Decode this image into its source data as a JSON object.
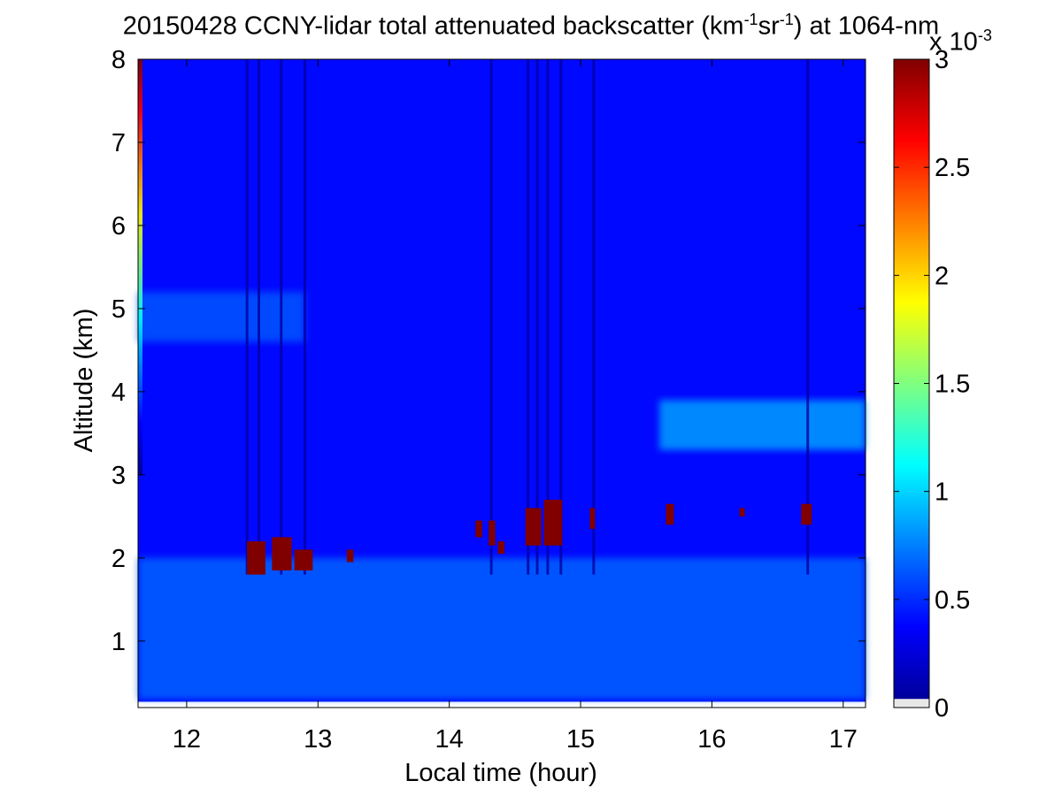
{
  "chart_data": {
    "type": "heatmap",
    "title": {
      "main": "20150428 CCNY-lidar total attenuated backscatter (km",
      "sup1": "-1",
      "mid": "sr",
      "sup2": "-1",
      "end": ") at 1064-nm"
    },
    "xlabel": "Local time (hour)",
    "ylabel": "Altitude (km)",
    "xlim": [
      11.63,
      17.17
    ],
    "ylim": [
      0.2,
      8
    ],
    "x_ticks": [
      12,
      13,
      14,
      15,
      16,
      17
    ],
    "y_ticks": [
      1,
      2,
      3,
      4,
      5,
      6,
      7,
      8
    ],
    "colorbar": {
      "range": [
        0,
        3
      ],
      "ticks": [
        "0",
        "0.5",
        "1",
        "1.5",
        "2",
        "2.5",
        "3"
      ],
      "tick_values": [
        0,
        0.5,
        1,
        1.5,
        2,
        2.5,
        3
      ],
      "multiplier_base": "x 10",
      "multiplier_exp": "-3",
      "colormap": "jet"
    },
    "background_value": 0.4,
    "layers": [
      {
        "feature": "surface-aerosol-layer",
        "altitude_km": [
          0.3,
          2.0
        ],
        "value": 0.7
      },
      {
        "feature": "upper-aerosol-band",
        "altitude_km": [
          3.3,
          3.9
        ],
        "time_hour": [
          15.6,
          17.17
        ],
        "value": 0.9
      },
      {
        "feature": "elevated-layer",
        "altitude_km": [
          4.6,
          5.2
        ],
        "time_hour": [
          11.63,
          12.9
        ],
        "value": 0.65
      }
    ],
    "clouds": [
      {
        "time_hour": [
          12.46,
          12.6
        ],
        "altitude_km": [
          1.8,
          2.2
        ],
        "value": 3
      },
      {
        "time_hour": [
          12.65,
          12.8
        ],
        "altitude_km": [
          1.85,
          2.25
        ],
        "value": 3
      },
      {
        "time_hour": [
          12.82,
          12.96
        ],
        "altitude_km": [
          1.85,
          2.1
        ],
        "value": 3
      },
      {
        "time_hour": [
          13.22,
          13.27
        ],
        "altitude_km": [
          1.95,
          2.1
        ],
        "value": 3
      },
      {
        "time_hour": [
          14.2,
          14.25
        ],
        "altitude_km": [
          2.25,
          2.45
        ],
        "value": 3
      },
      {
        "time_hour": [
          14.3,
          14.35
        ],
        "altitude_km": [
          2.15,
          2.45
        ],
        "value": 3
      },
      {
        "time_hour": [
          14.37,
          14.42
        ],
        "altitude_km": [
          2.05,
          2.2
        ],
        "value": 3
      },
      {
        "time_hour": [
          14.58,
          14.7
        ],
        "altitude_km": [
          2.15,
          2.6
        ],
        "value": 3
      },
      {
        "time_hour": [
          14.72,
          14.86
        ],
        "altitude_km": [
          2.15,
          2.7
        ],
        "value": 3
      },
      {
        "time_hour": [
          15.07,
          15.11
        ],
        "altitude_km": [
          2.35,
          2.6
        ],
        "value": 3
      },
      {
        "time_hour": [
          15.65,
          15.71
        ],
        "altitude_km": [
          2.4,
          2.65
        ],
        "value": 3
      },
      {
        "time_hour": [
          16.21,
          16.25
        ],
        "altitude_km": [
          2.5,
          2.6
        ],
        "value": 3
      },
      {
        "time_hour": [
          16.68,
          16.76
        ],
        "altitude_km": [
          2.4,
          2.65
        ],
        "value": 3
      }
    ],
    "dark_stripes_time_hour": [
      12.46,
      12.55,
      12.72,
      12.9,
      14.32,
      14.6,
      14.67,
      14.75,
      14.85,
      15.1,
      16.73
    ]
  }
}
